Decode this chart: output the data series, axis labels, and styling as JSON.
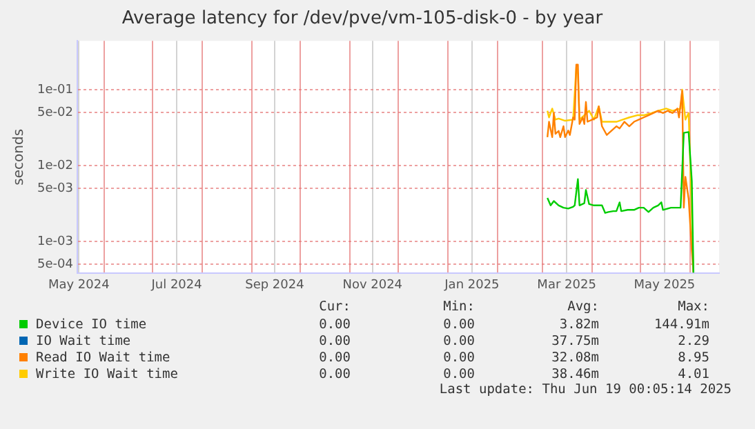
{
  "chart_data": {
    "type": "line",
    "title": "Average latency for /dev/pve/vm-105-disk-0 - by year",
    "ylabel": "seconds",
    "log": "y",
    "grid": true,
    "legend": "bottom",
    "marker": "none",
    "line_style": "solid",
    "xlim": [
      "2024-05-15",
      "2025-06-19"
    ],
    "xticks": [
      {
        "value": "2024-05-16",
        "label": "May 2024"
      },
      {
        "value": "2024-06-01",
        "label": null
      },
      {
        "value": "2024-07-01",
        "label": null
      },
      {
        "value": "2024-07-16",
        "label": "Jul 2024"
      },
      {
        "value": "2024-08-01",
        "label": null
      },
      {
        "value": "2024-09-01",
        "label": null
      },
      {
        "value": "2024-09-15",
        "label": "Sep 2024"
      },
      {
        "value": "2024-10-01",
        "label": null
      },
      {
        "value": "2024-11-01",
        "label": null
      },
      {
        "value": "2024-11-15",
        "label": "Nov 2024"
      },
      {
        "value": "2024-12-01",
        "label": null
      },
      {
        "value": "2025-01-01",
        "label": null
      },
      {
        "value": "2025-01-16",
        "label": "Jan 2025"
      },
      {
        "value": "2025-02-01",
        "label": null
      },
      {
        "value": "2025-03-01",
        "label": null
      },
      {
        "value": "2025-03-16",
        "label": "Mar 2025"
      },
      {
        "value": "2025-04-01",
        "label": null
      },
      {
        "value": "2025-05-01",
        "label": null
      },
      {
        "value": "2025-05-16",
        "label": "May 2025"
      },
      {
        "value": "2025-06-01",
        "label": null
      }
    ],
    "ylim": [
      0.00038,
      0.44
    ],
    "yticks": [
      {
        "value": 0.0005,
        "label": "5e-04"
      },
      {
        "value": 0.001,
        "label": "1e-03"
      },
      {
        "value": 0.005,
        "label": "5e-03"
      },
      {
        "value": 0.01,
        "label": "1e-02"
      },
      {
        "value": 0.05,
        "label": "5e-02"
      },
      {
        "value": 0.1,
        "label": "1e-01"
      }
    ],
    "series": [
      {
        "name": "Device IO time",
        "color": "#00cc00",
        "x": [
          "2025-03-04",
          "2025-03-06",
          "2025-03-08",
          "2025-03-11",
          "2025-03-14",
          "2025-03-17",
          "2025-03-20",
          "2025-03-21",
          "2025-03-23",
          "2025-03-24",
          "2025-03-27",
          "2025-03-28",
          "2025-03-30",
          "2025-04-02",
          "2025-04-07",
          "2025-04-09",
          "2025-04-11",
          "2025-04-14",
          "2025-04-16",
          "2025-04-18",
          "2025-04-19",
          "2025-04-23",
          "2025-04-27",
          "2025-04-30",
          "2025-05-03",
          "2025-05-06",
          "2025-05-09",
          "2025-05-12",
          "2025-05-14",
          "2025-05-15",
          "2025-05-20",
          "2025-05-24",
          "2025-05-26",
          "2025-05-28",
          "2025-05-31",
          "2025-06-02",
          "2025-06-03"
        ],
        "values": [
          0.00375,
          0.00299,
          0.00341,
          0.00299,
          0.00279,
          0.00272,
          0.00287,
          0.00299,
          0.00665,
          0.00299,
          0.00319,
          0.00477,
          0.00311,
          0.00299,
          0.00299,
          0.00238,
          0.00245,
          0.00251,
          0.00251,
          0.00328,
          0.00251,
          0.00261,
          0.00261,
          0.00279,
          0.00279,
          0.00245,
          0.00279,
          0.00299,
          0.00328,
          0.00261,
          0.00279,
          0.00279,
          0.00279,
          0.027,
          0.0277,
          0.00623,
          0.00039
        ]
      },
      {
        "name": "IO Wait time",
        "color": "#0066b3"
      },
      {
        "name": "Read IO Wait time",
        "color": "#ff8000",
        "x": [
          "2025-03-04",
          "2025-03-05",
          "2025-03-07",
          "2025-03-08",
          "2025-03-09",
          "2025-03-11",
          "2025-03-12",
          "2025-03-14",
          "2025-03-15",
          "2025-03-17",
          "2025-03-18",
          "2025-03-20",
          "2025-03-21",
          "2025-03-22",
          "2025-03-23",
          "2025-03-24",
          "2025-03-26",
          "2025-03-27",
          "2025-03-28",
          "2025-03-29",
          "2025-04-01",
          "2025-04-04",
          "2025-04-05",
          "2025-04-07",
          "2025-04-10",
          "2025-04-13",
          "2025-04-16",
          "2025-04-18",
          "2025-04-21",
          "2025-04-24",
          "2025-04-27",
          "2025-04-30",
          "2025-05-03",
          "2025-05-06",
          "2025-05-09",
          "2025-05-12",
          "2025-05-15",
          "2025-05-18",
          "2025-05-21",
          "2025-05-24",
          "2025-05-25",
          "2025-05-27",
          "2025-05-28",
          "2025-05-29",
          "2025-05-31",
          "2025-06-02",
          "2025-06-03"
        ],
        "values": [
          0.0237,
          0.0378,
          0.0237,
          0.0493,
          0.0262,
          0.0286,
          0.0237,
          0.033,
          0.0237,
          0.0289,
          0.0253,
          0.0431,
          0.0403,
          0.214,
          0.214,
          0.0353,
          0.0431,
          0.0353,
          0.0689,
          0.0378,
          0.0403,
          0.0431,
          0.0602,
          0.033,
          0.0253,
          0.0289,
          0.033,
          0.0309,
          0.0378,
          0.033,
          0.0378,
          0.0403,
          0.0431,
          0.0461,
          0.0493,
          0.0527,
          0.0493,
          0.0527,
          0.0493,
          0.0564,
          0.0431,
          0.096,
          0.00279,
          0.00711,
          0.00367,
          0.000736,
          0.00039
        ]
      },
      {
        "name": "Write IO Wait time",
        "color": "#ffcc00",
        "x": [
          "2025-03-04",
          "2025-03-05",
          "2025-03-07",
          "2025-03-09",
          "2025-03-11",
          "2025-03-15",
          "2025-03-20",
          "2025-03-22",
          "2025-03-23",
          "2025-03-24",
          "2025-03-27",
          "2025-03-30",
          "2025-04-02",
          "2025-04-05",
          "2025-04-07",
          "2025-04-11",
          "2025-04-16",
          "2025-04-20",
          "2025-04-24",
          "2025-04-29",
          "2025-05-03",
          "2025-05-08",
          "2025-05-12",
          "2025-05-17",
          "2025-05-21",
          "2025-05-26",
          "2025-05-27",
          "2025-05-29",
          "2025-05-31",
          "2025-06-01",
          "2025-06-03"
        ],
        "values": [
          0.0527,
          0.0431,
          0.0564,
          0.0403,
          0.0417,
          0.039,
          0.0403,
          0.2,
          0.16,
          0.0403,
          0.0461,
          0.0527,
          0.0403,
          0.0602,
          0.0378,
          0.0378,
          0.0378,
          0.0403,
          0.0431,
          0.0461,
          0.0461,
          0.0493,
          0.0527,
          0.0564,
          0.0527,
          0.0564,
          0.1,
          0.0403,
          0.0493,
          0.0106,
          0.0004
        ]
      }
    ],
    "annotations": [
      "Cur:",
      "Min:",
      "Avg:",
      "Max:",
      "0.00",
      "0.00",
      "3.82m",
      "144.91m",
      "0.00",
      "0.00",
      "37.75m",
      "2.29",
      "0.00",
      "0.00",
      "32.08m",
      "8.95",
      "0.00",
      "0.00",
      "38.46m",
      "4.01",
      "Last update: Thu Jun 19 00:05:14 2025"
    ]
  }
}
